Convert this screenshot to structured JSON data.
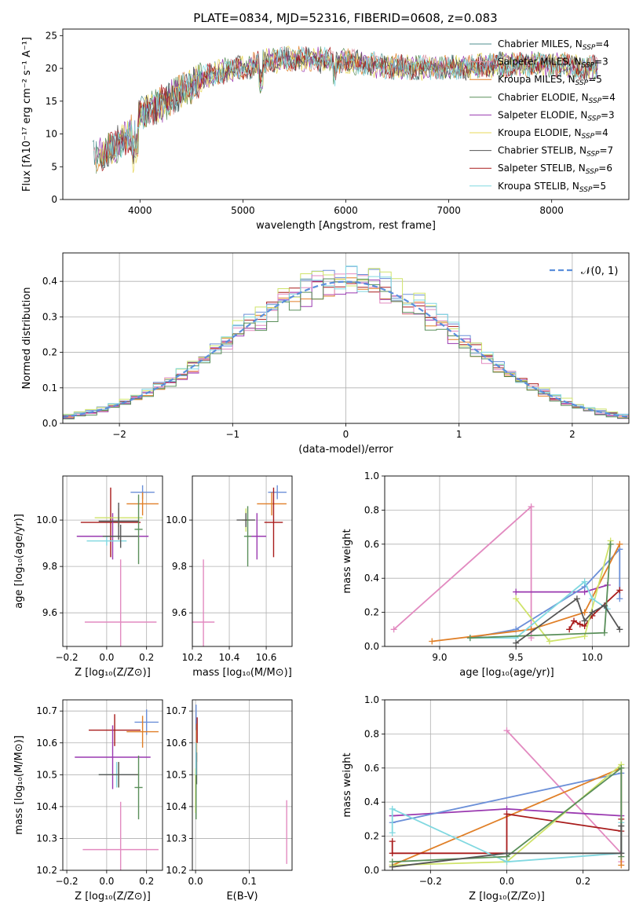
{
  "title": "PLATE=0834, MJD=52316, FIBERID=0608, z=0.083",
  "colors": {
    "chabrier_miles": "#4f8f8f",
    "salpeter_miles": "#d98fa0",
    "kroupa_miles": "#e07f27",
    "chabrier_elodie": "#5a8f5a",
    "salpeter_elodie": "#9a39b0",
    "kroupa_elodie": "#e8d85a",
    "chabrier_stelib": "#555555",
    "salpeter_stelib": "#a81b1b",
    "kroupa_stelib": "#80d8e0",
    "hist_blue": "#6b8fd8",
    "hist_green": "#cfe36a",
    "hist_pink": "#e28ac0",
    "normal_curve": "#5b8fdc"
  },
  "chart_data": [
    {
      "id": "spectrum",
      "type": "line",
      "xlabel": "wavelength [Angstrom, rest frame]",
      "ylabel": "Flux [fλ10⁻¹⁷ erg cm⁻² s⁻¹ A⁻¹]",
      "xlim": [
        3250,
        8750
      ],
      "ylim": [
        0,
        26
      ],
      "xticks": [
        4000,
        5000,
        6000,
        7000,
        8000
      ],
      "yticks": [
        0,
        5,
        10,
        15,
        20,
        25
      ],
      "legend_position": "top-right",
      "series": [
        {
          "name": "Chabrier MILES, N",
          "sub": "SSP",
          "suffix": "=4",
          "color_key": "chabrier_miles"
        },
        {
          "name": "Salpeter MILES, N",
          "sub": "SSP",
          "suffix": "=3",
          "color_key": "salpeter_miles"
        },
        {
          "name": "Kroupa MILES, N",
          "sub": "SSP",
          "suffix": "=5",
          "color_key": "kroupa_miles"
        },
        {
          "name": "Chabrier ELODIE, N",
          "sub": "SSP",
          "suffix": "=4",
          "color_key": "chabrier_elodie"
        },
        {
          "name": "Salpeter ELODIE, N",
          "sub": "SSP",
          "suffix": "=3",
          "color_key": "salpeter_elodie"
        },
        {
          "name": "Kroupa ELODIE, N",
          "sub": "SSP",
          "suffix": "=4",
          "color_key": "kroupa_elodie"
        },
        {
          "name": "Chabrier STELIB, N",
          "sub": "SSP",
          "suffix": "=7",
          "color_key": "chabrier_stelib"
        },
        {
          "name": "Salpeter STELIB, N",
          "sub": "SSP",
          "suffix": "=6",
          "color_key": "salpeter_stelib"
        },
        {
          "name": "Kroupa STELIB, N",
          "sub": "SSP",
          "suffix": "=5",
          "color_key": "kroupa_stelib"
        }
      ],
      "continuum": [
        [
          3500,
          6
        ],
        [
          3700,
          7.5
        ],
        [
          3900,
          10
        ],
        [
          4000,
          13
        ],
        [
          4200,
          14.5
        ],
        [
          4400,
          16.5
        ],
        [
          4600,
          18.5
        ],
        [
          4800,
          19.5
        ],
        [
          5000,
          20
        ],
        [
          5200,
          21
        ],
        [
          5500,
          21.5
        ],
        [
          6000,
          21
        ],
        [
          6500,
          20.2
        ],
        [
          7000,
          20
        ],
        [
          7400,
          20.5
        ],
        [
          8000,
          20.6
        ],
        [
          8500,
          20
        ]
      ]
    },
    {
      "id": "residuals",
      "type": "histogram",
      "xlabel": "(data-model)/error",
      "ylabel": "Normed distribution",
      "xlim": [
        -2.5,
        2.5
      ],
      "ylim": [
        0,
        0.48
      ],
      "xticks": [
        -2,
        -1,
        0,
        1,
        2
      ],
      "xticklabels": [
        "−2",
        "−1",
        "0",
        "1",
        "2"
      ],
      "yticks": [
        0.0,
        0.1,
        0.2,
        0.3,
        0.4
      ],
      "yticklabels": [
        "0.0",
        "0.1",
        "0.2",
        "0.3",
        "0.4"
      ],
      "grid": true,
      "bin_width": 0.1,
      "legend_position": "top-right",
      "legend": "𝒩(0, 1)",
      "series": [
        {
          "color_key": "hist_blue",
          "bias": 0.015
        },
        {
          "color_key": "kroupa_miles",
          "bias": -0.01
        },
        {
          "color_key": "salpeter_stelib",
          "bias": 0.005
        },
        {
          "color_key": "salpeter_elodie",
          "bias": -0.015
        },
        {
          "color_key": "hist_green",
          "bias": 0.02
        },
        {
          "color_key": "hist_pink",
          "bias": -0.005
        },
        {
          "color_key": "kroupa_stelib",
          "bias": 0.01
        },
        {
          "color_key": "chabrier_elodie",
          "bias": -0.02
        }
      ]
    },
    {
      "id": "z-age",
      "type": "scatter",
      "xlabel": "Z [log₁₀(Z/Z⊙)]",
      "ylabel": "age  [log₁₀(age/yr)]",
      "xlim": [
        -0.22,
        0.28
      ],
      "ylim": [
        9.455,
        10.19
      ],
      "xticks": [
        -0.2,
        0.0,
        0.2
      ],
      "xticklabels": [
        "−0.2",
        "0.0",
        "0.2"
      ],
      "yticks": [
        9.6,
        9.8,
        10.0
      ],
      "yticklabels": [
        "9.6",
        "9.8",
        "10.0"
      ],
      "grid": true,
      "points": [
        {
          "x": 0.18,
          "xerr": 0.06,
          "y": 10.12,
          "yerr": 0.03,
          "color_key": "hist_blue"
        },
        {
          "x": 0.18,
          "xerr": 0.08,
          "y": 10.07,
          "yerr": 0.05,
          "color_key": "kroupa_miles"
        },
        {
          "x": 0.02,
          "xerr": 0.15,
          "y": 9.99,
          "yerr": 0.15,
          "color_key": "salpeter_stelib"
        },
        {
          "x": 0.03,
          "xerr": 0.18,
          "y": 9.93,
          "yerr": 0.1,
          "color_key": "salpeter_elodie"
        },
        {
          "x": 0.06,
          "xerr": 0.12,
          "y": 10.01,
          "yerr": 0.04,
          "color_key": "hist_green"
        },
        {
          "x": 0.0,
          "xerr": 0.1,
          "y": 9.91,
          "yerr": 0.02,
          "color_key": "kroupa_stelib"
        },
        {
          "x": 0.07,
          "xerr": 0.09,
          "y": 9.93,
          "yerr": 0.05,
          "color_key": "chabrier_stelib"
        },
        {
          "x": 0.16,
          "xerr": 0.02,
          "y": 9.96,
          "yerr": 0.15,
          "color_key": "chabrier_elodie"
        },
        {
          "x": 0.06,
          "xerr": 0.1,
          "y": 9.995,
          "yerr": 0.08,
          "color_key": "chabrier_stelib"
        },
        {
          "x": 0.07,
          "xerr": 0.18,
          "y": 9.56,
          "yerr": 0.27,
          "color_key": "hist_pink"
        }
      ]
    },
    {
      "id": "mass-age",
      "type": "scatter",
      "xlabel": "mass [log₁₀(M/M⊙)]",
      "xlim": [
        10.2,
        10.74
      ],
      "ylim": [
        9.455,
        10.19
      ],
      "xticks": [
        10.2,
        10.4,
        10.6
      ],
      "xticklabels": [
        "10.2",
        "10.4",
        "10.6"
      ],
      "yticks": [
        9.6,
        9.8,
        10.0
      ],
      "yticklabels": [
        "9.6",
        "9.8",
        "10.0"
      ],
      "grid": true,
      "points": [
        {
          "x": 10.66,
          "xerr": 0.05,
          "y": 10.12,
          "yerr": 0.03,
          "color_key": "hist_blue"
        },
        {
          "x": 10.63,
          "xerr": 0.08,
          "y": 10.07,
          "yerr": 0.05,
          "color_key": "kroupa_miles"
        },
        {
          "x": 10.64,
          "xerr": 0.05,
          "y": 9.99,
          "yerr": 0.15,
          "color_key": "salpeter_stelib"
        },
        {
          "x": 10.55,
          "xerr": 0.05,
          "y": 9.93,
          "yerr": 0.1,
          "color_key": "salpeter_elodie"
        },
        {
          "x": 10.49,
          "xerr": 0.02,
          "y": 10.0,
          "yerr": 0.05,
          "color_key": "hist_green"
        },
        {
          "x": 10.49,
          "xerr": 0.05,
          "y": 10.0,
          "yerr": 0.03,
          "color_key": "chabrier_stelib"
        },
        {
          "x": 10.5,
          "xerr": 0.02,
          "y": 9.93,
          "yerr": 0.13,
          "color_key": "chabrier_elodie"
        },
        {
          "x": 10.26,
          "xerr": 0.06,
          "y": 9.56,
          "yerr": 0.27,
          "color_key": "hist_pink"
        }
      ]
    },
    {
      "id": "age-weight",
      "type": "line",
      "xlabel": "age  [log₁₀(age/yr)]",
      "ylabel": "mass weight",
      "xlim": [
        8.64,
        10.24
      ],
      "ylim": [
        0,
        1.0
      ],
      "xticks": [
        9.0,
        9.5,
        10.0
      ],
      "xticklabels": [
        "9.0",
        "9.5",
        "10.0"
      ],
      "yticks": [
        0.0,
        0.2,
        0.4,
        0.6,
        0.8,
        1.0
      ],
      "yticklabels": [
        "0.0",
        "0.2",
        "0.4",
        "0.6",
        "0.8",
        "1.0"
      ],
      "grid": true,
      "series": [
        {
          "color_key": "hist_pink",
          "x": [
            8.7,
            9.6,
            9.6
          ],
          "y": [
            0.1,
            0.82,
            0.05
          ]
        },
        {
          "color_key": "salpeter_elodie",
          "x": [
            9.5,
            9.95,
            10.1
          ],
          "y": [
            0.32,
            0.32,
            0.36
          ]
        },
        {
          "color_key": "hist_blue",
          "x": [
            9.2,
            9.5,
            9.95,
            10.18,
            10.18
          ],
          "y": [
            0.05,
            0.1,
            0.35,
            0.57,
            0.28
          ]
        },
        {
          "color_key": "kroupa_miles",
          "x": [
            8.95,
            9.6,
            9.95,
            10.18
          ],
          "y": [
            0.03,
            0.1,
            0.2,
            0.6
          ]
        },
        {
          "color_key": "salpeter_stelib",
          "x": [
            9.85,
            9.88,
            9.92,
            9.95,
            10.0,
            10.18
          ],
          "y": [
            0.1,
            0.15,
            0.13,
            0.12,
            0.18,
            0.33
          ]
        },
        {
          "color_key": "hist_green",
          "x": [
            9.5,
            9.72,
            9.95,
            10.12
          ],
          "y": [
            0.28,
            0.03,
            0.06,
            0.62
          ]
        },
        {
          "color_key": "kroupa_stelib",
          "x": [
            9.2,
            9.5,
            9.95,
            10.0,
            10.1
          ],
          "y": [
            0.05,
            0.05,
            0.38,
            0.28,
            0.22
          ]
        },
        {
          "color_key": "chabrier_elodie",
          "x": [
            9.2,
            10.08,
            10.12
          ],
          "y": [
            0.05,
            0.08,
            0.6
          ]
        },
        {
          "color_key": "chabrier_stelib",
          "x": [
            9.5,
            9.9,
            9.95,
            10.0,
            10.08,
            10.18
          ],
          "y": [
            0.02,
            0.28,
            0.15,
            0.2,
            0.24,
            0.1
          ]
        }
      ]
    },
    {
      "id": "z-mass",
      "type": "scatter",
      "xlabel": "Z [log₁₀(Z/Z⊙)]",
      "ylabel": "mass [log₁₀(M/M⊙)]",
      "xlim": [
        -0.22,
        0.28
      ],
      "ylim": [
        10.2,
        10.735
      ],
      "xticks": [
        -0.2,
        0.0,
        0.2
      ],
      "xticklabels": [
        "−0.2",
        "0.0",
        "0.2"
      ],
      "yticks": [
        10.2,
        10.3,
        10.4,
        10.5,
        10.6,
        10.7
      ],
      "yticklabels": [
        "10.2",
        "10.3",
        "10.4",
        "10.5",
        "10.6",
        "10.7"
      ],
      "grid": true,
      "points": [
        {
          "x": 0.2,
          "xerr": 0.06,
          "y": 10.665,
          "yerr": 0.04,
          "color_key": "hist_blue"
        },
        {
          "x": 0.18,
          "xerr": 0.08,
          "y": 10.635,
          "yerr": 0.05,
          "color_key": "kroupa_miles"
        },
        {
          "x": 0.04,
          "xerr": 0.13,
          "y": 10.64,
          "yerr": 0.05,
          "color_key": "salpeter_stelib"
        },
        {
          "x": 0.03,
          "xerr": 0.19,
          "y": 10.555,
          "yerr": 0.1,
          "color_key": "salpeter_elodie"
        },
        {
          "x": 0.06,
          "xerr": 0.1,
          "y": 10.5,
          "yerr": 0.04,
          "color_key": "hist_green"
        },
        {
          "x": 0.05,
          "xerr": 0.09,
          "y": 10.5,
          "yerr": 0.04,
          "color_key": "kroupa_stelib"
        },
        {
          "x": 0.06,
          "xerr": 0.1,
          "y": 10.5,
          "yerr": 0.04,
          "color_key": "chabrier_stelib"
        },
        {
          "x": 0.16,
          "xerr": 0.02,
          "y": 10.46,
          "yerr": 0.1,
          "color_key": "chabrier_elodie"
        },
        {
          "x": 0.07,
          "xerr": 0.19,
          "y": 10.265,
          "yerr": 0.15,
          "color_key": "hist_pink"
        }
      ]
    },
    {
      "id": "ebv-mass",
      "type": "scatter",
      "xlabel": "E(B-V)",
      "xlim": [
        -0.006,
        0.18
      ],
      "ylim": [
        10.2,
        10.735
      ],
      "xticks": [
        0.0,
        0.1
      ],
      "xticklabels": [
        "0.0",
        "0.1"
      ],
      "yticks": [
        10.2,
        10.3,
        10.4,
        10.5,
        10.6,
        10.7
      ],
      "yticklabels": [
        "10.2",
        "10.3",
        "10.4",
        "10.5",
        "10.6",
        "10.7"
      ],
      "grid": true,
      "points": [
        {
          "x": 0.001,
          "y": 10.68,
          "yerr": 0.04,
          "color_key": "hist_blue"
        },
        {
          "x": 0.002,
          "y": 10.6,
          "yerr": 0.06,
          "color_key": "kroupa_miles"
        },
        {
          "x": 0.003,
          "y": 10.64,
          "yerr": 0.04,
          "color_key": "salpeter_stelib"
        },
        {
          "x": 0.001,
          "y": 10.52,
          "yerr": 0.06,
          "color_key": "salpeter_elodie"
        },
        {
          "x": 0.0,
          "y": 10.45,
          "yerr": 0.07,
          "color_key": "hist_green"
        },
        {
          "x": 0.002,
          "y": 10.52,
          "yerr": 0.05,
          "color_key": "chabrier_stelib"
        },
        {
          "x": 0.001,
          "y": 10.45,
          "yerr": 0.09,
          "color_key": "chabrier_elodie"
        },
        {
          "x": 0.001,
          "y": 10.55,
          "yerr": 0.05,
          "color_key": "kroupa_stelib"
        },
        {
          "x": 0.17,
          "y": 10.32,
          "yerr": 0.1,
          "color_key": "hist_pink"
        }
      ]
    },
    {
      "id": "z-weight",
      "type": "line",
      "xlabel": "Z [log₁₀(Z/Z⊙)]",
      "ylabel": "mass weight",
      "xlim": [
        -0.32,
        0.32
      ],
      "ylim": [
        0,
        1.0
      ],
      "xticks": [
        -0.2,
        0.0,
        0.2
      ],
      "xticklabels": [
        "−0.2",
        "0.0",
        "0.2"
      ],
      "yticks": [
        0.0,
        0.2,
        0.4,
        0.6,
        0.8,
        1.0
      ],
      "yticklabels": [
        "0.0",
        "0.2",
        "0.4",
        "0.6",
        "0.8",
        "1.0"
      ],
      "grid": true,
      "series": [
        {
          "color_key": "hist_pink",
          "x": [
            0.0,
            0.3,
            0.3
          ],
          "y": [
            0.82,
            0.1,
            0.05
          ]
        },
        {
          "color_key": "salpeter_elodie",
          "x": [
            -0.3,
            0.0,
            0.3
          ],
          "y": [
            0.32,
            0.36,
            0.32
          ]
        },
        {
          "color_key": "hist_blue",
          "x": [
            -0.3,
            0.3,
            0.3
          ],
          "y": [
            0.28,
            0.57,
            0.1
          ]
        },
        {
          "color_key": "kroupa_miles",
          "x": [
            -0.3,
            0.3,
            0.3
          ],
          "y": [
            0.03,
            0.6,
            0.03
          ]
        },
        {
          "color_key": "salpeter_stelib",
          "x": [
            -0.3,
            -0.3,
            0.0,
            0.0,
            0.3,
            0.3
          ],
          "y": [
            0.17,
            0.1,
            0.1,
            0.33,
            0.23,
            0.3
          ]
        },
        {
          "color_key": "hist_green",
          "x": [
            -0.3,
            0.0,
            0.3
          ],
          "y": [
            0.03,
            0.05,
            0.62
          ]
        },
        {
          "color_key": "kroupa_stelib",
          "x": [
            -0.3,
            -0.3,
            0.0,
            0.3,
            0.3
          ],
          "y": [
            0.22,
            0.36,
            0.05,
            0.1,
            0.28
          ]
        },
        {
          "color_key": "chabrier_elodie",
          "x": [
            -0.3,
            0.0,
            0.3,
            0.3
          ],
          "y": [
            0.05,
            0.08,
            0.6,
            0.08
          ]
        },
        {
          "color_key": "chabrier_stelib",
          "x": [
            -0.3,
            0.0,
            0.3,
            0.3
          ],
          "y": [
            0.02,
            0.1,
            0.1,
            0.26
          ]
        }
      ]
    }
  ]
}
